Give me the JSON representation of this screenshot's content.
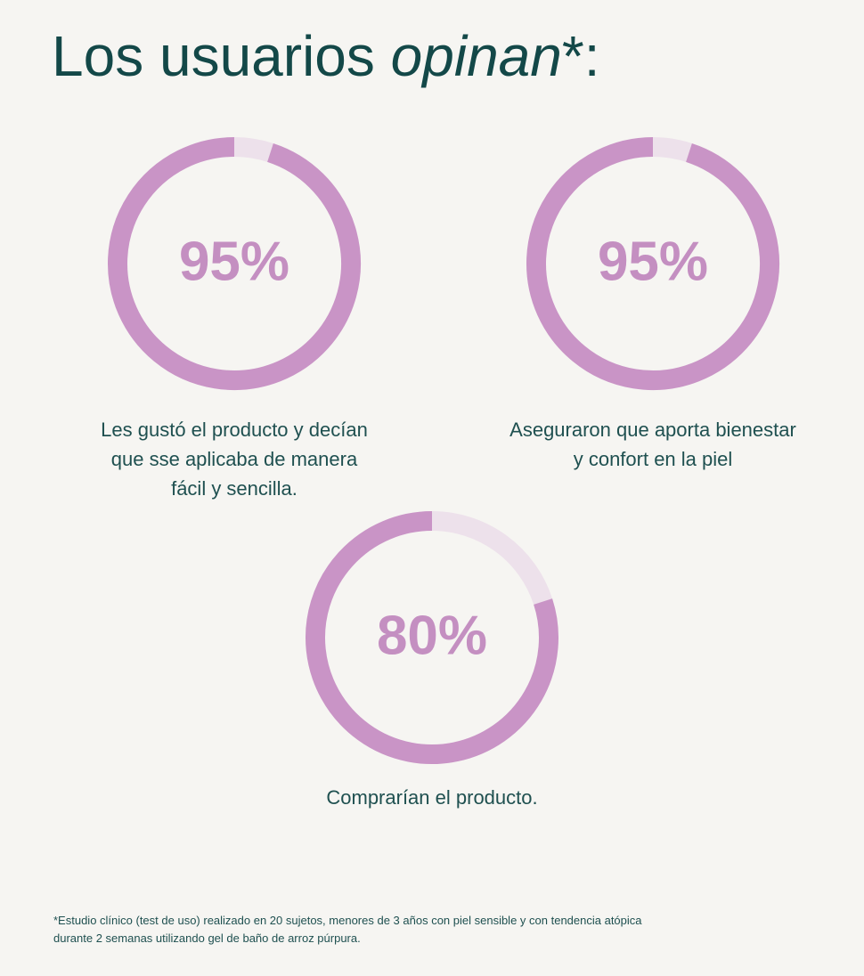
{
  "title": {
    "text": "Los usuarios",
    "emphasis": "opinan",
    "suffix": "*:"
  },
  "stats": [
    {
      "value": 95,
      "value_label": "95%",
      "caption": [
        "Les gustó el producto y decían",
        "que sse aplicaba de manera",
        "fácil y sencilla."
      ]
    },
    {
      "value": 95,
      "value_label": "95%",
      "caption": [
        "Aseguraron que aporta bienestar",
        "y confort en la piel"
      ]
    },
    {
      "value": 80,
      "value_label": "80%",
      "caption": [
        "Comprarían el producto."
      ]
    }
  ],
  "footnote": [
    "*Estudio clínico (test de uso) realizado en 20 sujetos, menores de 3 años con piel sensible y con tendencia atópica",
    "durante 2 semanas utilizando gel de baño de arroz púrpura."
  ]
}
